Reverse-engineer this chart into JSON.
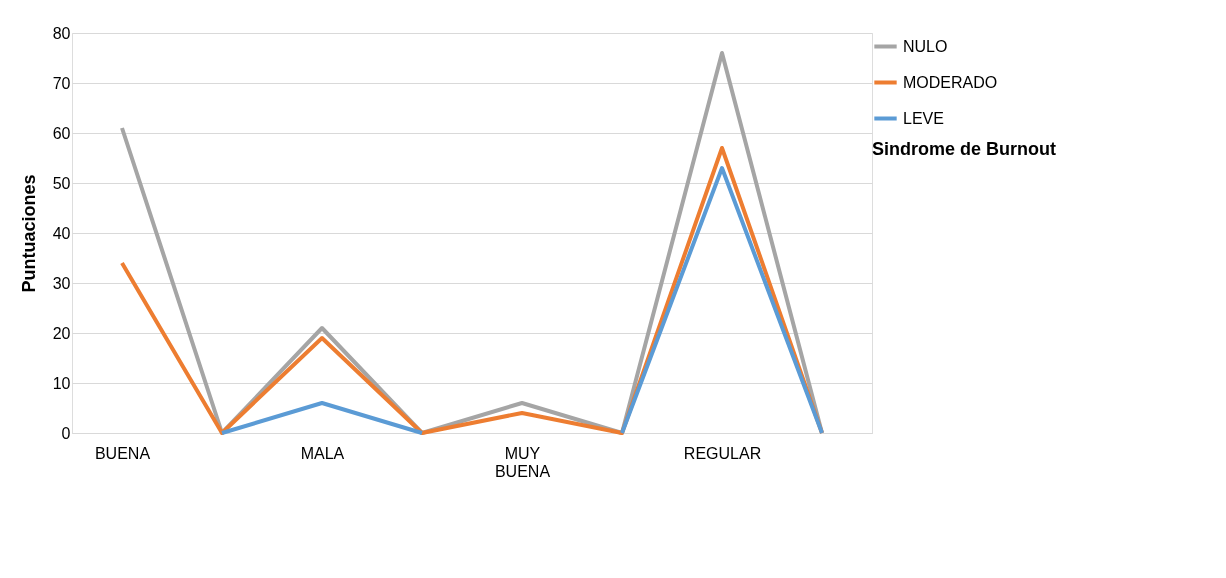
{
  "chart_data": {
    "type": "line",
    "ylabel": "Puntuaciones",
    "legend_title": "Sindrome de Burnout",
    "categories": [
      "BUENA",
      null,
      "MALA",
      null,
      "MUY BUENA",
      null,
      "REGULAR",
      null
    ],
    "series": [
      {
        "name": "NULO",
        "color": "#a5a5a5",
        "values": [
          61,
          0,
          21,
          0,
          6,
          0,
          76,
          0
        ]
      },
      {
        "name": "MODERADO",
        "color": "#ed7d31",
        "values": [
          34,
          0,
          19,
          0,
          4,
          0,
          57,
          0
        ]
      },
      {
        "name": "LEVE",
        "color": "#5b9bd5",
        "values": [
          null,
          0,
          6,
          0,
          null,
          0,
          53,
          0
        ]
      }
    ],
    "ylim": [
      0,
      80
    ],
    "yticks": [
      0,
      10,
      20,
      30,
      40,
      50,
      60,
      70,
      80
    ],
    "grid": "y",
    "legend": "right",
    "marker": "none",
    "line_style": "solid"
  }
}
